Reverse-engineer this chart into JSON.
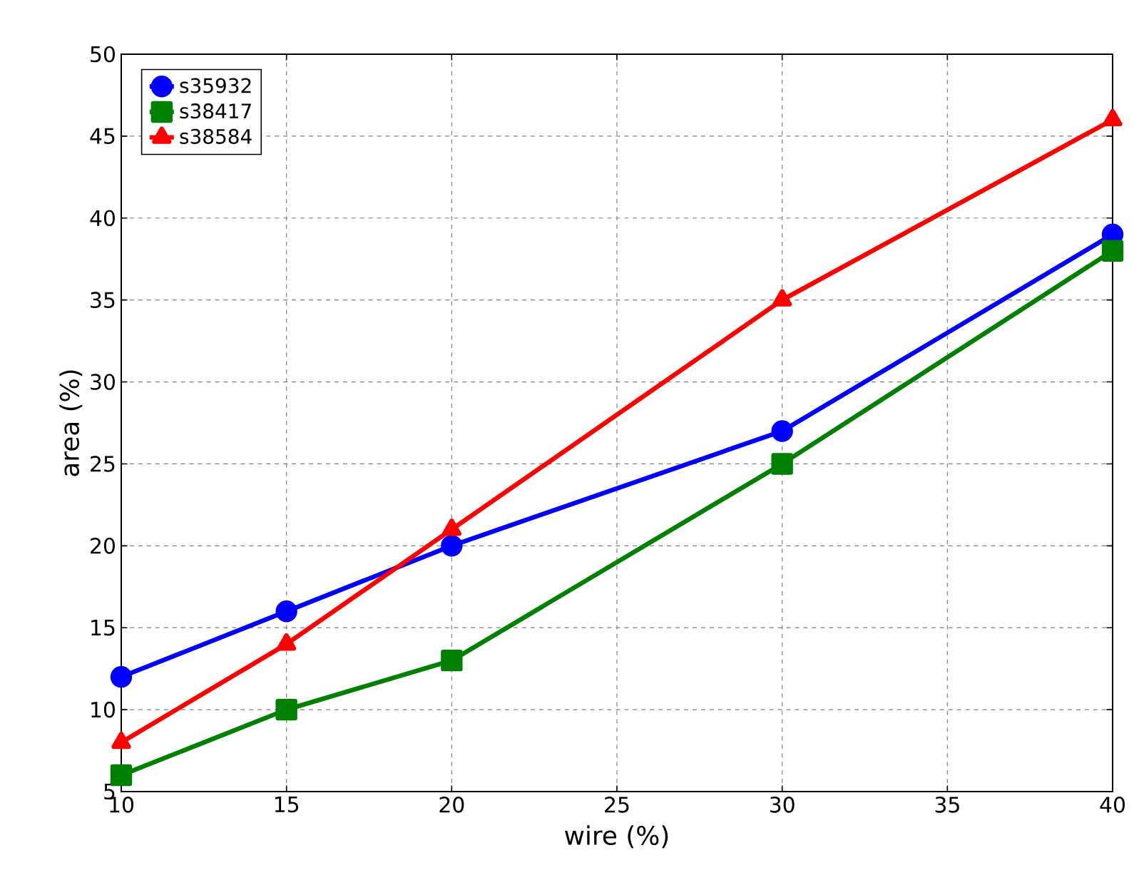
{
  "chart_data": {
    "type": "line",
    "xlabel": "wire (%)",
    "ylabel": "area (%)",
    "x": [
      10,
      15,
      20,
      30,
      40
    ],
    "series": [
      {
        "name": "s35932",
        "color": "#0000ff",
        "marker": "circle",
        "values": [
          12,
          16,
          20,
          27,
          39
        ]
      },
      {
        "name": "s38417",
        "color": "#008000",
        "marker": "square",
        "values": [
          6,
          10,
          13,
          25,
          38
        ]
      },
      {
        "name": "s38584",
        "color": "#ff0000",
        "marker": "triangle",
        "values": [
          8,
          14,
          21,
          35,
          46
        ]
      }
    ],
    "xlim": [
      10,
      40
    ],
    "xticks": [
      10,
      15,
      20,
      25,
      30,
      35,
      40
    ],
    "ylim": [
      5,
      50
    ],
    "yticks": [
      5,
      10,
      15,
      20,
      25,
      30,
      35,
      40,
      45,
      50
    ],
    "grid": true,
    "legend": "top left",
    "line_style": "solid"
  }
}
